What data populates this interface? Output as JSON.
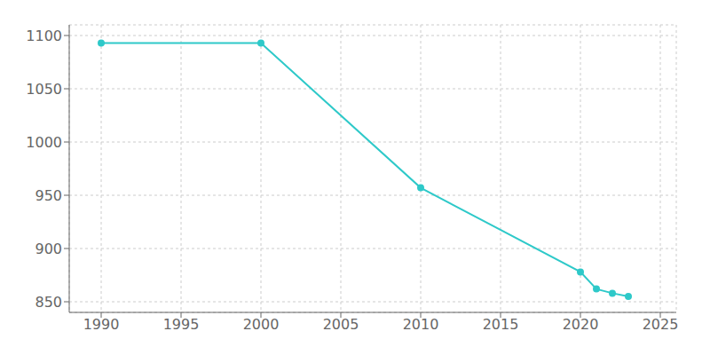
{
  "chart_data": {
    "type": "line",
    "x": [
      1990,
      2000,
      2010,
      2020,
      2021,
      2022,
      2023
    ],
    "values": [
      1093,
      1093,
      957,
      878,
      862,
      858,
      855
    ],
    "color": "#2ec9c9",
    "marker": "circle",
    "xlim": [
      1988,
      2026
    ],
    "ylim": [
      840,
      1110
    ],
    "xticks": [
      1990,
      1995,
      2000,
      2005,
      2010,
      2015,
      2020,
      2025
    ],
    "yticks": [
      850,
      900,
      950,
      1000,
      1050,
      1100
    ],
    "grid": true
  }
}
